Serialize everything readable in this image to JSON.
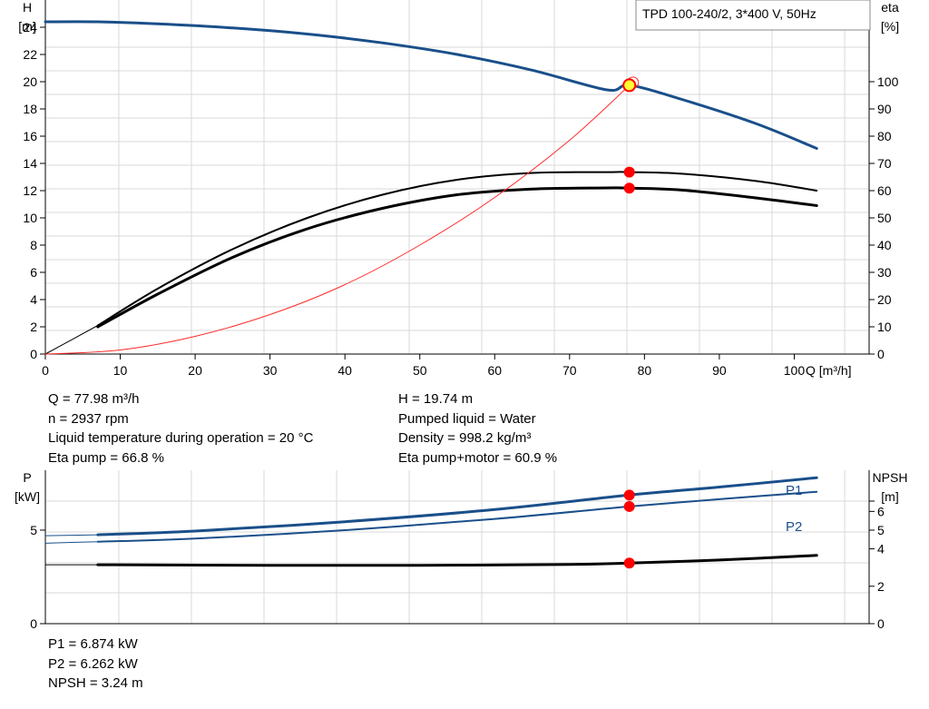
{
  "model_label": "TPD 100-240/2, 3*400 V, 50Hz",
  "info_left": [
    "Q = 77.98 m³/h",
    "n = 2937 rpm",
    "Liquid temperature during operation = 20 °C",
    "Eta pump = 66.8 %"
  ],
  "info_right": [
    "H = 19.74 m",
    "Pumped liquid = Water",
    "Density = 998.2 kg/m³",
    "Eta pump+motor = 60.9 %"
  ],
  "info_bottom": [
    "P1 = 6.874 kW",
    "P2 = 6.262 kW",
    "NPSH = 3.24 m"
  ],
  "chart_data": [
    {
      "type": "line",
      "panel": "head-efficiency",
      "xlabel": "Q [m³/h]",
      "ylabel": [
        "H",
        "[m]"
      ],
      "y2label": [
        "eta",
        "[%]"
      ],
      "xlim": [
        0,
        110
      ],
      "ylim": [
        0,
        26
      ],
      "y2lim": [
        0,
        130
      ],
      "xticks": [
        0,
        10,
        20,
        30,
        40,
        50,
        60,
        70,
        80,
        90,
        100
      ],
      "yticks": [
        0,
        2,
        4,
        6,
        8,
        10,
        12,
        14,
        16,
        18,
        20,
        22,
        24
      ],
      "y2ticks": [
        0,
        10,
        20,
        30,
        40,
        50,
        60,
        70,
        80,
        90,
        100
      ],
      "grid": true,
      "colors": {
        "head": "#1a4f8a",
        "eta": "#000000",
        "system": "#ff2a2a",
        "dot": "#ff0000",
        "duty_point": "#ffff33"
      },
      "series": [
        {
          "role": "head",
          "axis": "left",
          "width": 3,
          "x": [
            0,
            7,
            15,
            25,
            35,
            45,
            55,
            65,
            75,
            78,
            85,
            95,
            103
          ],
          "y": [
            24.4,
            24.4,
            24.25,
            23.95,
            23.5,
            22.85,
            22.0,
            20.85,
            19.4,
            19.74,
            18.7,
            16.9,
            15.1
          ]
        },
        {
          "role": "eta-pump",
          "axis": "right",
          "width": 2,
          "x": [
            7,
            15,
            25,
            35,
            45,
            55,
            65,
            75,
            78,
            85,
            95,
            103
          ],
          "y": [
            10.5,
            24,
            38.5,
            50,
            58.5,
            64,
            66.5,
            66.8,
            66.8,
            66.2,
            63.5,
            60
          ]
        },
        {
          "role": "eta-pump-motor",
          "axis": "right",
          "width": 3,
          "x": [
            7,
            15,
            25,
            35,
            45,
            55,
            65,
            75,
            78,
            85,
            95,
            103
          ],
          "y": [
            10,
            22,
            35.5,
            46,
            53.5,
            58.5,
            60.6,
            61.0,
            60.9,
            60.2,
            57.3,
            54.5
          ]
        },
        {
          "role": "eta-extension",
          "axis": "right",
          "width": 1,
          "x": [
            0,
            7
          ],
          "y": [
            0,
            10.5
          ]
        },
        {
          "role": "system",
          "axis": "left",
          "width": 1,
          "x": [
            0,
            10,
            20,
            30,
            40,
            50,
            60,
            70,
            78
          ],
          "y": [
            0,
            0.3,
            1.3,
            2.9,
            5.1,
            8.0,
            11.5,
            15.7,
            19.74
          ]
        }
      ],
      "markers": [
        {
          "axis": "left",
          "x": 77.98,
          "y": 19.74,
          "role": "duty_point"
        },
        {
          "axis": "right",
          "x": 77.98,
          "y": 66.8
        },
        {
          "axis": "right",
          "x": 77.98,
          "y": 60.9
        }
      ]
    },
    {
      "type": "line",
      "panel": "power-npsh",
      "ylabel": [
        "P",
        "[kW]"
      ],
      "y2label": [
        "NPSH",
        "[m]"
      ],
      "xlim": [
        0,
        110
      ],
      "ylim": [
        0,
        8.2
      ],
      "y2lim": [
        0,
        8.2
      ],
      "yticks": [
        0,
        5
      ],
      "y2ticks": [
        0,
        2,
        4,
        5,
        6
      ],
      "grid": true,
      "series": [
        {
          "name": "P1",
          "axis": "left",
          "width": 3,
          "color": "#1a4f8a",
          "x": [
            0,
            7,
            20,
            40,
            60,
            78,
            90,
            103
          ],
          "y": [
            4.7,
            4.75,
            4.95,
            5.45,
            6.1,
            6.874,
            7.3,
            7.8
          ]
        },
        {
          "name": "P2",
          "axis": "left",
          "width": 2,
          "color": "#1a4f8a",
          "x": [
            0,
            7,
            20,
            40,
            60,
            78,
            90,
            103
          ],
          "y": [
            4.3,
            4.38,
            4.55,
            5.0,
            5.6,
            6.262,
            6.65,
            7.05
          ]
        },
        {
          "name": "",
          "axis": "right",
          "width": 3,
          "color": "#000000",
          "x": [
            0,
            7,
            30,
            50,
            70,
            78,
            90,
            103
          ],
          "y": [
            3.15,
            3.15,
            3.12,
            3.12,
            3.17,
            3.24,
            3.4,
            3.65
          ]
        }
      ],
      "markers": [
        {
          "axis": "left",
          "x": 77.98,
          "y": 6.874
        },
        {
          "axis": "left",
          "x": 77.98,
          "y": 6.262
        },
        {
          "axis": "right",
          "x": 77.98,
          "y": 3.24
        }
      ]
    }
  ]
}
